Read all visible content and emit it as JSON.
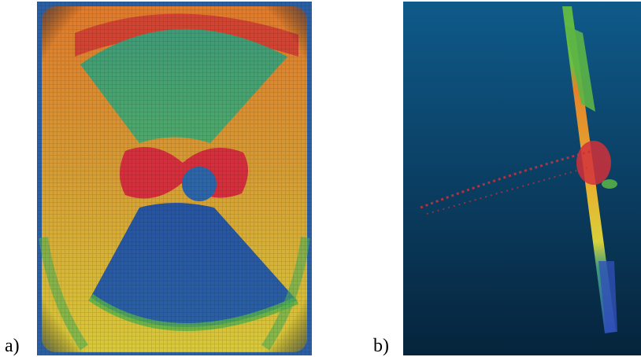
{
  "figure": {
    "panels": [
      {
        "label": "a)",
        "description_icon": "point-cloud-heatmap-front-view"
      },
      {
        "label": "b)",
        "description_icon": "point-cloud-side-view"
      }
    ]
  },
  "colors": {
    "deep_blue": "#1d4a9a",
    "mid_blue": "#2f6aa6",
    "cyan_green": "#3c9a7a",
    "green": "#5cb545",
    "yellow": "#d8c93a",
    "orange": "#e2822a",
    "red": "#d2303a",
    "panel_b_bg_top": "#0f5a8a",
    "panel_b_bg_bottom": "#06243c"
  }
}
